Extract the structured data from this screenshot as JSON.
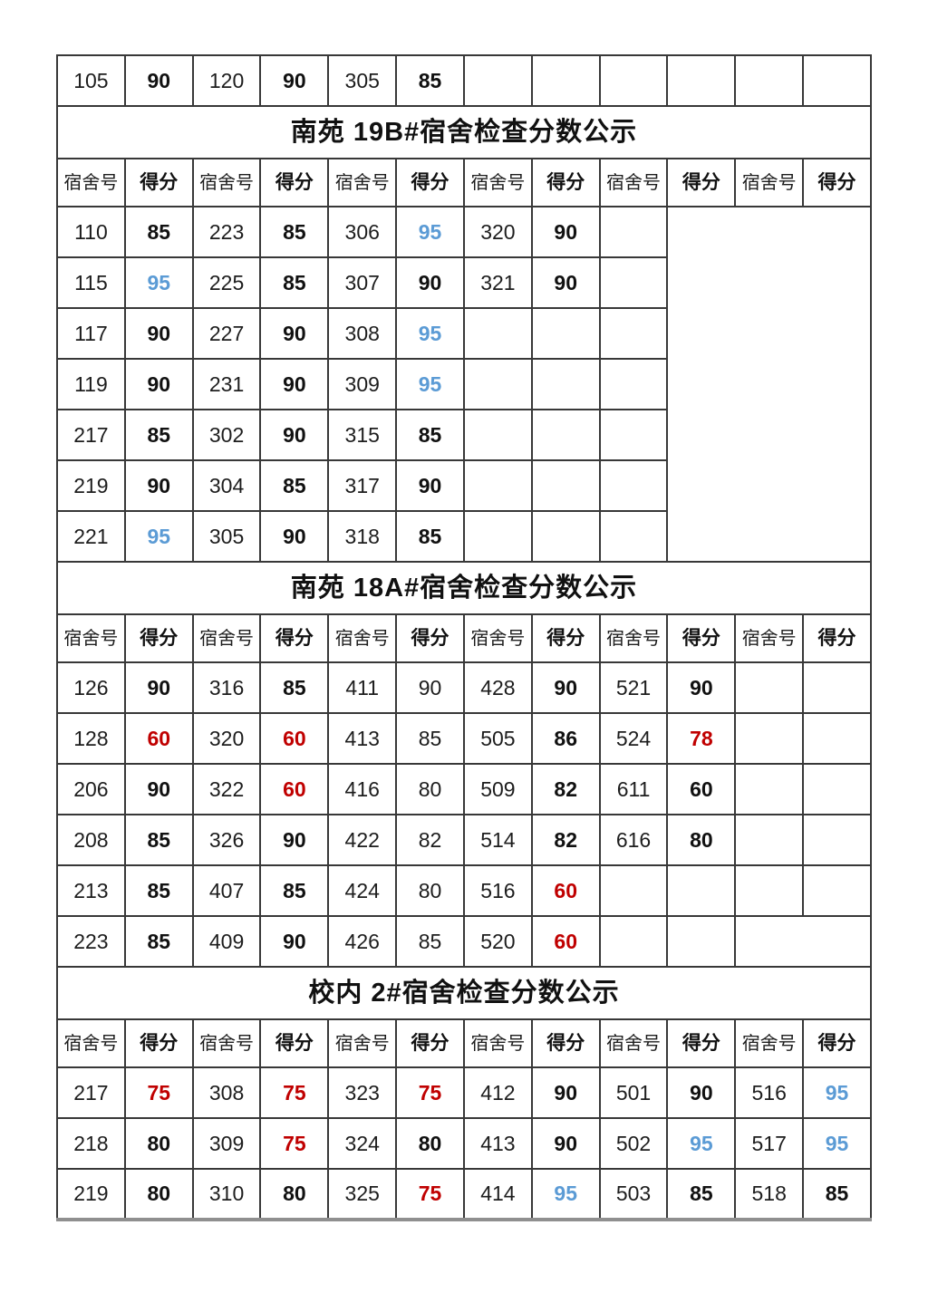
{
  "colors": {
    "text": "#1d1d1d",
    "grid": "#383838",
    "score_red": "#c00000",
    "score_blue": "#5b9bd5",
    "cut_line_gray": "#8f8f8f",
    "background": "#ffffff"
  },
  "table": {
    "column_count": 12,
    "header_labels": {
      "room": "宿舍号",
      "score": "得分"
    },
    "sections": [
      {
        "title": null,
        "header": false,
        "rows": [
          [
            [
              "105",
              "room"
            ],
            [
              "90",
              "bold"
            ],
            [
              "120",
              "room"
            ],
            [
              "90",
              "bold"
            ],
            [
              "305",
              "room"
            ],
            [
              "85",
              "bold"
            ],
            [
              "",
              ""
            ],
            [
              "",
              ""
            ],
            [
              "",
              ""
            ],
            [
              "",
              ""
            ],
            [
              "",
              ""
            ],
            [
              "",
              ""
            ]
          ]
        ]
      },
      {
        "title": "南苑 19B#宿舍检查分数公示",
        "header": true,
        "rows": [
          [
            [
              "110",
              "room"
            ],
            [
              "85",
              "bold"
            ],
            [
              "223",
              "room"
            ],
            [
              "85",
              "bold"
            ],
            [
              "306",
              "room"
            ],
            [
              "95",
              "blue"
            ],
            [
              "320",
              "room"
            ],
            [
              "90",
              "bold"
            ],
            [
              "",
              ""
            ],
            [
              "",
              "",
              3,
              7
            ]
          ],
          [
            [
              "115",
              "room"
            ],
            [
              "95",
              "blue"
            ],
            [
              "225",
              "room"
            ],
            [
              "85",
              "bold"
            ],
            [
              "307",
              "room"
            ],
            [
              "90",
              "bold"
            ],
            [
              "321",
              "room"
            ],
            [
              "90",
              "bold"
            ],
            [
              "",
              ""
            ]
          ],
          [
            [
              "117",
              "room"
            ],
            [
              "90",
              "bold"
            ],
            [
              "227",
              "room"
            ],
            [
              "90",
              "bold"
            ],
            [
              "308",
              "room"
            ],
            [
              "95",
              "blue"
            ],
            [
              "",
              ""
            ],
            [
              "",
              ""
            ],
            [
              "",
              ""
            ]
          ],
          [
            [
              "119",
              "room"
            ],
            [
              "90",
              "bold"
            ],
            [
              "231",
              "room"
            ],
            [
              "90",
              "bold"
            ],
            [
              "309",
              "room"
            ],
            [
              "95",
              "blue"
            ],
            [
              "",
              ""
            ],
            [
              "",
              ""
            ],
            [
              "",
              ""
            ]
          ],
          [
            [
              "217",
              "room"
            ],
            [
              "85",
              "bold"
            ],
            [
              "302",
              "room"
            ],
            [
              "90",
              "bold"
            ],
            [
              "315",
              "room"
            ],
            [
              "85",
              "bold"
            ],
            [
              "",
              ""
            ],
            [
              "",
              ""
            ],
            [
              "",
              ""
            ]
          ],
          [
            [
              "219",
              "room"
            ],
            [
              "90",
              "bold"
            ],
            [
              "304",
              "room"
            ],
            [
              "85",
              "bold"
            ],
            [
              "317",
              "room"
            ],
            [
              "90",
              "bold"
            ],
            [
              "",
              ""
            ],
            [
              "",
              ""
            ],
            [
              "",
              ""
            ]
          ],
          [
            [
              "221",
              "room"
            ],
            [
              "95",
              "blue"
            ],
            [
              "305",
              "room"
            ],
            [
              "90",
              "bold"
            ],
            [
              "318",
              "room"
            ],
            [
              "85",
              "bold"
            ],
            [
              "",
              ""
            ],
            [
              "",
              ""
            ],
            [
              "",
              ""
            ]
          ]
        ]
      },
      {
        "title": "南苑 18A#宿舍检查分数公示",
        "header": true,
        "rows": [
          [
            [
              "126",
              "room"
            ],
            [
              "90",
              "bold"
            ],
            [
              "316",
              "room"
            ],
            [
              "85",
              "bold"
            ],
            [
              "411",
              "room"
            ],
            [
              "90",
              "plain"
            ],
            [
              "428",
              "room"
            ],
            [
              "90",
              "bold"
            ],
            [
              "521",
              "room"
            ],
            [
              "90",
              "bold"
            ],
            [
              "",
              ""
            ],
            [
              "",
              ""
            ]
          ],
          [
            [
              "128",
              "room"
            ],
            [
              "60",
              "red"
            ],
            [
              "320",
              "room"
            ],
            [
              "60",
              "red"
            ],
            [
              "413",
              "room"
            ],
            [
              "85",
              "plain"
            ],
            [
              "505",
              "room"
            ],
            [
              "86",
              "bold"
            ],
            [
              "524",
              "room"
            ],
            [
              "78",
              "red"
            ],
            [
              "",
              ""
            ],
            [
              "",
              ""
            ]
          ],
          [
            [
              "206",
              "room"
            ],
            [
              "90",
              "bold"
            ],
            [
              "322",
              "room"
            ],
            [
              "60",
              "red"
            ],
            [
              "416",
              "room"
            ],
            [
              "80",
              "plain"
            ],
            [
              "509",
              "room"
            ],
            [
              "82",
              "bold"
            ],
            [
              "611",
              "room"
            ],
            [
              "60",
              "bold"
            ],
            [
              "",
              ""
            ],
            [
              "",
              ""
            ]
          ],
          [
            [
              "208",
              "room"
            ],
            [
              "85",
              "bold"
            ],
            [
              "326",
              "room"
            ],
            [
              "90",
              "bold"
            ],
            [
              "422",
              "room"
            ],
            [
              "82",
              "plain"
            ],
            [
              "514",
              "room"
            ],
            [
              "82",
              "bold"
            ],
            [
              "616",
              "room"
            ],
            [
              "80",
              "bold"
            ],
            [
              "",
              ""
            ],
            [
              "",
              ""
            ]
          ],
          [
            [
              "213",
              "room"
            ],
            [
              "85",
              "bold"
            ],
            [
              "407",
              "room"
            ],
            [
              "85",
              "bold"
            ],
            [
              "424",
              "room"
            ],
            [
              "80",
              "plain"
            ],
            [
              "516",
              "room"
            ],
            [
              "60",
              "red"
            ],
            [
              "",
              ""
            ],
            [
              "",
              ""
            ],
            [
              "",
              ""
            ],
            [
              "",
              ""
            ]
          ],
          [
            [
              "223",
              "room"
            ],
            [
              "85",
              "bold"
            ],
            [
              "409",
              "room"
            ],
            [
              "90",
              "bold"
            ],
            [
              "426",
              "room"
            ],
            [
              "85",
              "plain"
            ],
            [
              "520",
              "room"
            ],
            [
              "60",
              "red"
            ],
            [
              "",
              ""
            ],
            [
              "",
              ""
            ],
            [
              "",
              "",
              2
            ]
          ]
        ]
      },
      {
        "title": "校内 2#宿舍检查分数公示",
        "header": true,
        "rows": [
          [
            [
              "217",
              "room"
            ],
            [
              "75",
              "red"
            ],
            [
              "308",
              "room"
            ],
            [
              "75",
              "red"
            ],
            [
              "323",
              "room"
            ],
            [
              "75",
              "red"
            ],
            [
              "412",
              "room"
            ],
            [
              "90",
              "bold"
            ],
            [
              "501",
              "room"
            ],
            [
              "90",
              "bold"
            ],
            [
              "516",
              "room"
            ],
            [
              "95",
              "blue"
            ]
          ],
          [
            [
              "218",
              "room"
            ],
            [
              "80",
              "bold"
            ],
            [
              "309",
              "room"
            ],
            [
              "75",
              "red"
            ],
            [
              "324",
              "room"
            ],
            [
              "80",
              "bold"
            ],
            [
              "413",
              "room"
            ],
            [
              "90",
              "bold"
            ],
            [
              "502",
              "room"
            ],
            [
              "95",
              "blue"
            ],
            [
              "517",
              "room"
            ],
            [
              "95",
              "blue"
            ]
          ],
          [
            [
              "219",
              "room"
            ],
            [
              "80",
              "bold"
            ],
            [
              "310",
              "room"
            ],
            [
              "80",
              "bold"
            ],
            [
              "325",
              "room"
            ],
            [
              "75",
              "red"
            ],
            [
              "414",
              "room"
            ],
            [
              "95",
              "blue"
            ],
            [
              "503",
              "room"
            ],
            [
              "85",
              "bold"
            ],
            [
              "518",
              "room"
            ],
            [
              "85",
              "bold"
            ]
          ]
        ]
      }
    ]
  }
}
